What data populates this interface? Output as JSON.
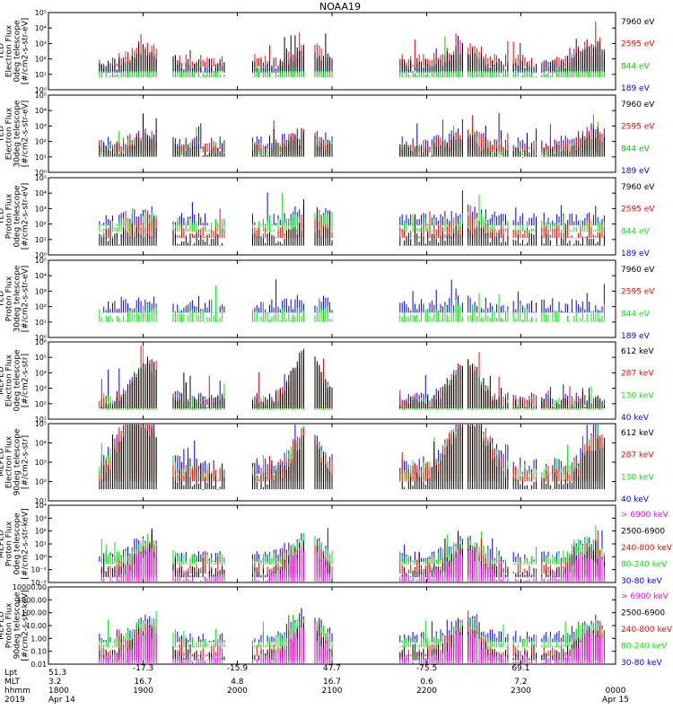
{
  "title": "NOAA19",
  "colors": {
    "blue": "#0000ff",
    "green": "#00ee00",
    "red": "#ff0000",
    "black": "#000000",
    "magenta": "#ff00ff"
  },
  "x_passes": [
    [
      0.09,
      0.19
    ],
    [
      0.22,
      0.25
    ],
    [
      0.25,
      0.31
    ],
    [
      0.36,
      0.39
    ],
    [
      0.39,
      0.45
    ],
    [
      0.47,
      0.5
    ],
    [
      0.62,
      0.68
    ],
    [
      0.68,
      0.73
    ],
    [
      0.74,
      0.81
    ],
    [
      0.82,
      0.86
    ],
    [
      0.87,
      0.98
    ]
  ],
  "chart_data": [
    {
      "type": "scatter",
      "panel": "TED electron 0deg",
      "ylabel": [
        "TED",
        "Electron Flux",
        "0deg telescope",
        "[#/cm2-s-str-eV]"
      ],
      "yscale": "log",
      "ylim_exp": [
        0,
        5
      ],
      "ytick_labels": [
        "10⁰",
        "10¹",
        "10²",
        "10³",
        "10⁴",
        "10⁵"
      ],
      "channels": [
        {
          "label": "7960 eV",
          "color": "#000000",
          "base": 1.6
        },
        {
          "label": "2595 eV",
          "color": "#ff0000",
          "base": 1.9
        },
        {
          "label": "844 eV",
          "color": "#00cc00",
          "base": 1.2
        },
        {
          "label": "189 eV",
          "color": "#0000ff",
          "base": 1.5
        }
      ],
      "peaks": [
        {
          "x": 0.175,
          "h": 1.0
        },
        {
          "x": 0.455,
          "h": 1.0
        },
        {
          "x": 0.735,
          "h": 1.1
        },
        {
          "x": 0.965,
          "h": 1.3
        }
      ]
    },
    {
      "type": "scatter",
      "panel": "TED electron 30deg",
      "ylabel": [
        "TED",
        "Electron Flux",
        "30deg telescope",
        "[#/cm2-s-str-eV]"
      ],
      "yscale": "log",
      "ylim_exp": [
        0,
        5
      ],
      "ytick_labels": [
        "10⁰",
        "10¹",
        "10²",
        "10³",
        "10⁴",
        "10⁵"
      ],
      "channels": [
        {
          "label": "7960 eV",
          "color": "#000000",
          "base": 1.4
        },
        {
          "label": "2595 eV",
          "color": "#ff0000",
          "base": 1.7
        },
        {
          "label": "844 eV",
          "color": "#00cc00",
          "base": 1.5
        },
        {
          "label": "189 eV",
          "color": "#0000ff",
          "base": 1.9
        }
      ],
      "peaks": [
        {
          "x": 0.175,
          "h": 0.8
        },
        {
          "x": 0.455,
          "h": 0.9
        },
        {
          "x": 0.735,
          "h": 0.8
        },
        {
          "x": 0.965,
          "h": 1.1
        }
      ]
    },
    {
      "type": "scatter",
      "panel": "TED proton 0deg",
      "ylabel": [
        "TED",
        "Proton Flux",
        "0deg telescope",
        "[#/cm2-s-str-eV]"
      ],
      "yscale": "log",
      "ylim_exp": [
        0,
        5
      ],
      "ytick_labels": [
        "10⁰",
        "10¹",
        "10²",
        "10³",
        "10⁴",
        "10⁵"
      ],
      "channels": [
        {
          "label": "7960 eV",
          "color": "#000000",
          "base": 1.0
        },
        {
          "label": "2595 eV",
          "color": "#ff0000",
          "base": 1.5
        },
        {
          "label": "844 eV",
          "color": "#00ee00",
          "base": 1.9
        },
        {
          "label": "189 eV",
          "color": "#0000ff",
          "base": 2.3
        }
      ],
      "peaks": [
        {
          "x": 0.18,
          "h": 0.6
        },
        {
          "x": 0.46,
          "h": 0.9
        },
        {
          "x": 0.74,
          "h": 0.7
        }
      ]
    },
    {
      "type": "scatter",
      "panel": "TED proton 30deg",
      "ylabel": [
        "TED",
        "Proton Flux",
        "30deg telescope",
        "[#/cm2-s-str-eV]"
      ],
      "yscale": "log",
      "ylim_exp": [
        0,
        5
      ],
      "ytick_labels": [
        "10⁰",
        "10¹",
        "10²",
        "10³",
        "10⁴",
        "10⁵"
      ],
      "channels": [
        {
          "label": "7960 eV",
          "color": "#000000",
          "base": 0.0
        },
        {
          "label": "2595 eV",
          "color": "#ff0000",
          "base": 0.0
        },
        {
          "label": "844 eV",
          "color": "#00ee00",
          "base": 1.4
        },
        {
          "label": "189 eV",
          "color": "#0000ff",
          "base": 2.0
        }
      ],
      "peaks": [
        {
          "x": 0.18,
          "h": 0.5
        },
        {
          "x": 0.46,
          "h": 0.6
        },
        {
          "x": 0.74,
          "h": 0.5
        }
      ]
    },
    {
      "type": "scatter",
      "panel": "MEPED electron 0deg",
      "ylabel": [
        "MEPED",
        "Electron Flux",
        "0deg telescope",
        "[#/cm2-s-str]"
      ],
      "yscale": "log",
      "ylim_exp": [
        1,
        6
      ],
      "ytick_labels": [
        "10¹",
        "10²",
        "10³",
        "10⁴",
        "10⁵",
        "10⁶"
      ],
      "channels": [
        {
          "label": "612 keV",
          "color": "#000000",
          "base": 2.1
        },
        {
          "label": "287 keV",
          "color": "#ff0000",
          "base": 2.1
        },
        {
          "label": "130 keV",
          "color": "#00ee00",
          "base": 2.0
        },
        {
          "label": "40 keV",
          "color": "#0000ff",
          "base": 2.3
        }
      ],
      "peaks": [
        {
          "x": 0.175,
          "h": 2.6
        },
        {
          "x": 0.455,
          "h": 3.3
        },
        {
          "x": 0.735,
          "h": 2.7
        }
      ]
    },
    {
      "type": "scatter",
      "panel": "MEPED electron 90deg",
      "ylabel": [
        "MEPED",
        "Electron Flux",
        "90deg telescope",
        "[#/cm2-s-str]"
      ],
      "yscale": "log",
      "ylim_exp": [
        1,
        5
      ],
      "ytick_labels": [
        "10¹",
        "10²",
        "10³",
        "10⁴",
        "10⁵"
      ],
      "channels": [
        {
          "label": "612 keV",
          "color": "#000000",
          "base": 2.0
        },
        {
          "label": "287 keV",
          "color": "#ff0000",
          "base": 2.4
        },
        {
          "label": "130 keV",
          "color": "#00ee00",
          "base": 2.5
        },
        {
          "label": "40 keV",
          "color": "#0000ff",
          "base": 2.8
        }
      ],
      "peaks": [
        {
          "x": 0.14,
          "h": 2.0
        },
        {
          "x": 0.175,
          "h": 2.2
        },
        {
          "x": 0.455,
          "h": 2.4
        },
        {
          "x": 0.72,
          "h": 2.0
        },
        {
          "x": 0.76,
          "h": 2.2
        },
        {
          "x": 0.97,
          "h": 2.0
        }
      ]
    },
    {
      "type": "scatter",
      "panel": "MEPED proton 0deg",
      "ylabel": [
        "MEPED",
        "Proton Flux",
        "0deg telescope",
        "[#/cm2-s-str-keV]"
      ],
      "yscale": "log",
      "ylim_exp": [
        -2,
        4
      ],
      "ytick_labels": [
        "10⁻²",
        "10⁻¹",
        "10⁰",
        "10¹",
        "10²",
        "10³",
        "10⁴"
      ],
      "channels": [
        {
          "label": "> 6900 keV",
          "color": "#ff00ff",
          "base": -1.6
        },
        {
          "label": "2500-6900",
          "color": "#000000",
          "base": -1.2
        },
        {
          "label": "240-800 keV",
          "color": "#ff0000",
          "base": -0.9
        },
        {
          "label": "80-240 keV",
          "color": "#00ee00",
          "base": -0.2
        },
        {
          "label": "30-80 keV",
          "color": "#0000ff",
          "base": 0.0
        }
      ],
      "peaks": [
        {
          "x": 0.175,
          "h": 2.0
        },
        {
          "x": 0.455,
          "h": 2.3
        },
        {
          "x": 0.735,
          "h": 2.1
        },
        {
          "x": 0.95,
          "h": 1.8
        }
      ]
    },
    {
      "type": "scatter",
      "panel": "MEPED proton 90deg",
      "ylabel": [
        "MEPED",
        "Proton Flux",
        "90deg telescope",
        "[#/cm2-s-str-keV]"
      ],
      "yscale": "log",
      "ylim_exp": [
        -2,
        4
      ],
      "ytick_labels": [
        "0.01",
        "0.10",
        "1.00",
        "10.00",
        "100.00",
        "1000.00",
        "10000.00"
      ],
      "channels": [
        {
          "label": "> 6900 keV",
          "color": "#ff00ff",
          "base": -1.6
        },
        {
          "label": "2500-6900",
          "color": "#000000",
          "base": -1.3
        },
        {
          "label": "240-800 keV",
          "color": "#ff0000",
          "base": -1.0
        },
        {
          "label": "80-240 keV",
          "color": "#00ee00",
          "base": -0.3
        },
        {
          "label": "30-80 keV",
          "color": "#0000ff",
          "base": 0.1
        }
      ],
      "peaks": [
        {
          "x": 0.175,
          "h": 2.1
        },
        {
          "x": 0.455,
          "h": 2.4
        },
        {
          "x": 0.735,
          "h": 2.2
        },
        {
          "x": 0.96,
          "h": 2.0
        }
      ]
    }
  ],
  "ephemeris": {
    "rows": [
      {
        "label": "Lpt",
        "values": [
          "51.3",
          "",
          "",
          "",
          "",
          "",
          ""
        ]
      },
      {
        "label": "MLT",
        "values": [
          "3.2",
          "16.7",
          "4.8",
          "16.7",
          "0.6",
          "7.2",
          ""
        ]
      },
      {
        "label": "hhmm",
        "values": [
          "1800",
          "1900",
          "2000",
          "2100",
          "2200",
          "2300",
          "0000"
        ]
      },
      {
        "label": "2019",
        "values": [
          "Apr 14",
          "",
          "",
          "",
          "",
          "",
          "Apr 15"
        ]
      }
    ],
    "mlat": [
      "",
      "-17.3",
      "-15.9",
      "47.7",
      "-75.5",
      "69.1",
      ""
    ],
    "x_positions": [
      0.0,
      0.167,
      0.333,
      0.5,
      0.667,
      0.833,
      1.0
    ]
  }
}
